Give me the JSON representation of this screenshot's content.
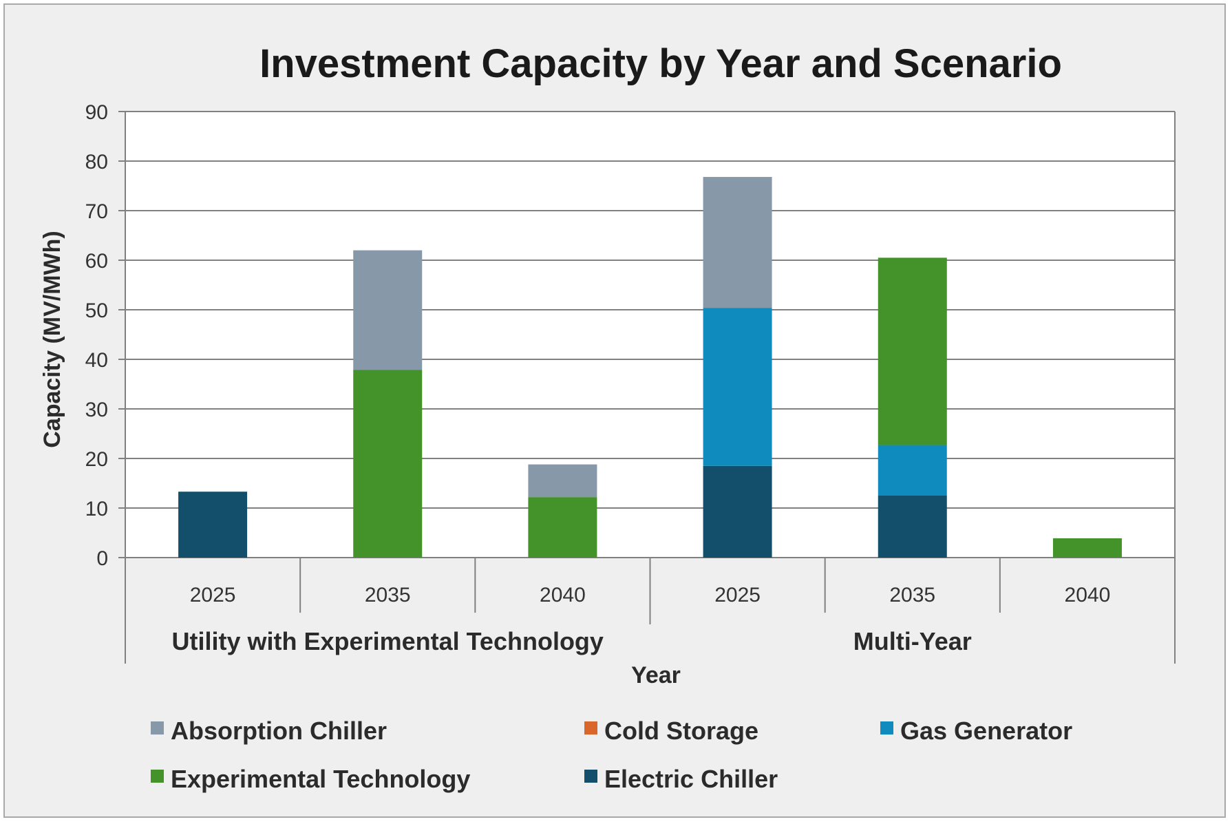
{
  "chart_data": {
    "type": "bar",
    "stacked": true,
    "title": "Investment Capacity by Year and Scenario",
    "xlabel": "Year",
    "ylabel": "Capacity (MV/MWh)",
    "ylim": [
      0,
      90
    ],
    "yticks": [
      0,
      10,
      20,
      30,
      40,
      50,
      60,
      70,
      80,
      90
    ],
    "grid": true,
    "legend_position": "bottom",
    "groups": [
      {
        "name": "Utility with Experimental Technology",
        "categories": [
          "2025",
          "2035",
          "2040"
        ]
      },
      {
        "name": "Multi-Year",
        "categories": [
          "2025",
          "2035",
          "2040"
        ]
      }
    ],
    "categories": [
      "2025",
      "2035",
      "2040",
      "2025",
      "2035",
      "2040"
    ],
    "series": [
      {
        "name": "Electric Chiller",
        "color": "#134f6b",
        "values": [
          13.3,
          0,
          0,
          18.5,
          12.5,
          0
        ]
      },
      {
        "name": "Gas Generator",
        "color": "#108bbd",
        "values": [
          0,
          0,
          0,
          31.9,
          10.2,
          0
        ]
      },
      {
        "name": "Cold Storage",
        "color": "#d9662b",
        "values": [
          0,
          0,
          0,
          0,
          0,
          0
        ]
      },
      {
        "name": "Experimental Technology",
        "color": "#43922a",
        "values": [
          0,
          37.9,
          12.2,
          0,
          37.8,
          3.9
        ]
      },
      {
        "name": "Absorption Chiller",
        "color": "#8799a9",
        "values": [
          0,
          24.1,
          6.6,
          26.4,
          0,
          0
        ]
      }
    ],
    "legend": [
      {
        "name": "Absorption Chiller",
        "color": "#8799a9"
      },
      {
        "name": "Cold Storage",
        "color": "#d9662b"
      },
      {
        "name": "Gas Generator",
        "color": "#108bbd"
      },
      {
        "name": "Experimental Technology",
        "color": "#43922a"
      },
      {
        "name": "Electric Chiller",
        "color": "#134f6b"
      }
    ]
  }
}
